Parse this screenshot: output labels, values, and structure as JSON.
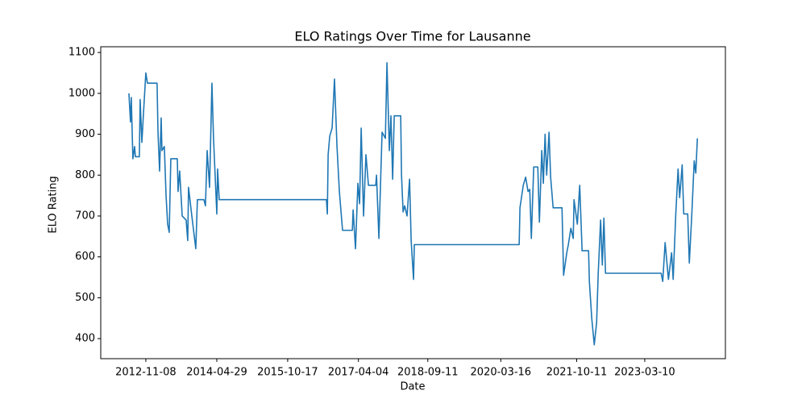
{
  "chart_data": {
    "type": "line",
    "title": "ELO Ratings Over Time for Lausanne",
    "x_label": "Date",
    "y_label": "ELO Rating",
    "x": [
      "2012-07-03",
      "2012-07-15",
      "2012-07-21",
      "2012-08-02",
      "2012-08-15",
      "2012-08-21",
      "2012-09-20",
      "2012-09-26",
      "2012-10-09",
      "2012-10-21",
      "2012-11-08",
      "2012-11-20",
      "2013-02-01",
      "2013-02-08",
      "2013-02-20",
      "2013-03-04",
      "2013-03-10",
      "2013-03-28",
      "2013-04-10",
      "2013-04-22",
      "2013-05-04",
      "2013-05-16",
      "2013-07-04",
      "2013-07-10",
      "2013-07-22",
      "2013-08-10",
      "2013-09-09",
      "2013-09-21",
      "2013-09-27",
      "2013-10-22",
      "2013-11-21",
      "2013-12-03",
      "2014-01-21",
      "2014-02-02",
      "2014-02-15",
      "2014-03-05",
      "2014-03-23",
      "2014-04-04",
      "2014-04-29",
      "2014-05-05",
      "2014-05-17",
      "2016-08-05",
      "2016-08-12",
      "2016-08-18",
      "2016-08-30",
      "2016-09-17",
      "2016-10-05",
      "2016-10-24",
      "2016-11-11",
      "2016-12-05",
      "2017-02-17",
      "2017-02-23",
      "2017-03-13",
      "2017-03-31",
      "2017-04-13",
      "2017-04-25",
      "2017-05-13",
      "2017-05-31",
      "2017-06-19",
      "2017-08-13",
      "2017-08-19",
      "2017-09-06",
      "2017-09-30",
      "2017-10-25",
      "2017-11-06",
      "2017-11-24",
      "2017-12-06",
      "2017-12-19",
      "2017-12-31",
      "2018-02-18",
      "2018-02-24",
      "2018-03-08",
      "2018-03-20",
      "2018-04-07",
      "2018-04-26",
      "2018-05-08",
      "2018-05-26",
      "2018-06-01",
      "2020-08-02",
      "2020-08-08",
      "2020-09-02",
      "2020-09-20",
      "2020-10-08",
      "2020-10-21",
      "2020-11-02",
      "2020-11-20",
      "2020-12-21",
      "2021-01-02",
      "2021-01-20",
      "2021-02-01",
      "2021-02-14",
      "2021-02-26",
      "2021-03-16",
      "2021-03-28",
      "2021-04-16",
      "2021-06-22",
      "2021-07-04",
      "2021-07-28",
      "2021-08-09",
      "2021-08-28",
      "2021-09-15",
      "2021-09-21",
      "2021-10-16",
      "2021-11-03",
      "2021-11-21",
      "2022-01-09",
      "2022-01-15",
      "2022-02-02",
      "2022-02-21",
      "2022-03-11",
      "2022-03-23",
      "2022-04-10",
      "2022-04-23",
      "2022-05-05",
      "2022-05-17",
      "2023-07-12",
      "2023-07-24",
      "2023-08-11",
      "2023-09-05",
      "2023-09-29",
      "2023-10-11",
      "2023-10-30",
      "2023-11-17",
      "2023-11-29",
      "2023-12-18",
      "2023-12-30",
      "2024-01-29",
      "2024-02-10",
      "2024-02-29",
      "2024-03-18",
      "2024-03-30",
      "2024-04-11"
    ],
    "series": [
      {
        "name": "Lausanne",
        "color": "#1f77b4",
        "values": [
          1000,
          930,
          990,
          840,
          870,
          845,
          845,
          985,
          880,
          950,
          1050,
          1025,
          1025,
          905,
          810,
          940,
          860,
          870,
          750,
          680,
          660,
          840,
          840,
          760,
          810,
          700,
          690,
          640,
          770,
          700,
          620,
          740,
          740,
          725,
          860,
          770,
          1025,
          890,
          705,
          815,
          740,
          740,
          705,
          850,
          895,
          915,
          1035,
          870,
          760,
          665,
          665,
          715,
          620,
          780,
          730,
          915,
          700,
          850,
          775,
          775,
          800,
          645,
          905,
          890,
          1075,
          860,
          945,
          790,
          945,
          945,
          800,
          710,
          725,
          700,
          790,
          640,
          545,
          630,
          630,
          720,
          775,
          795,
          760,
          765,
          645,
          820,
          820,
          685,
          860,
          780,
          900,
          800,
          905,
          795,
          720,
          720,
          555,
          610,
          630,
          670,
          645,
          740,
          680,
          775,
          615,
          615,
          540,
          450,
          385,
          440,
          560,
          690,
          580,
          695,
          560,
          560,
          540,
          635,
          545,
          610,
          545,
          700,
          815,
          745,
          825,
          705,
          705,
          585,
          705,
          835,
          805,
          890
        ]
      }
    ],
    "xlim": [
      "2011-12-03",
      "2024-11-09"
    ],
    "xticks": [
      "2012-11-08",
      "2014-04-29",
      "2015-10-17",
      "2017-04-04",
      "2018-09-11",
      "2020-03-16",
      "2021-10-11",
      "2023-03-10"
    ],
    "ylim": [
      351,
      1114
    ],
    "yticks": [
      400,
      500,
      600,
      700,
      800,
      900,
      1000,
      1100
    ],
    "grid": false
  }
}
